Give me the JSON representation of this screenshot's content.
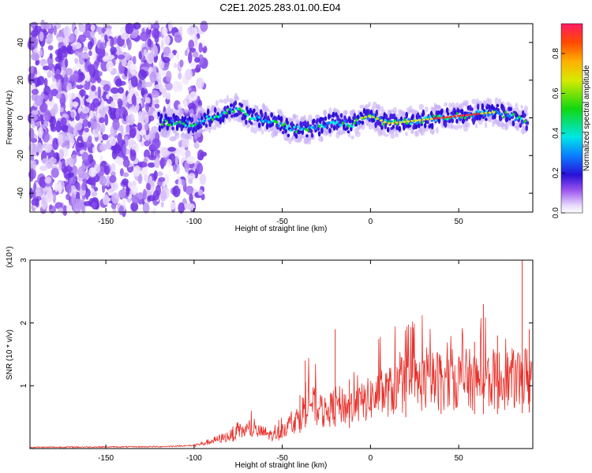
{
  "title": "C2E1.2025.283.01.00.E04",
  "chart_data": [
    {
      "type": "heatmap",
      "title": "C2E1.2025.283.01.00.E04",
      "xlabel": "Height of straight line (km)",
      "ylabel": "Frequency (Hz)",
      "xlim": [
        -193,
        92
      ],
      "ylim": [
        -50,
        50
      ],
      "xticks": [
        -150,
        -100,
        -50,
        0,
        50
      ],
      "yticks": [
        -40,
        -20,
        0,
        20,
        40
      ],
      "colorbar": {
        "label": "Normalized spectral amplitude",
        "range": [
          0,
          0.95
        ],
        "ticks": [
          0.0,
          0.2,
          0.4,
          0.6,
          0.8
        ]
      },
      "noise_region_x": [
        -193,
        -100
      ],
      "ridge": {
        "x": [
          -120,
          -110,
          -100,
          -90,
          -80,
          -75,
          -70,
          -60,
          -50,
          -45,
          -40,
          -30,
          -20,
          -10,
          -5,
          0,
          10,
          20,
          30,
          40,
          50,
          60,
          70,
          80,
          88
        ],
        "freq": [
          -2,
          -3,
          -3,
          0,
          4,
          5,
          1,
          -1,
          -4,
          -6,
          -6,
          -5,
          -2,
          -4,
          0,
          1,
          -3,
          -2,
          -1,
          0,
          1,
          2,
          3,
          1,
          -2
        ]
      }
    },
    {
      "type": "line",
      "xlabel": "Height of straight line (km)",
      "ylabel": "SNR (10 * v/v)",
      "y_multiplier": "(x10⁴)",
      "xlim": [
        -193,
        92
      ],
      "ylim": [
        0,
        3
      ],
      "xticks": [
        -150,
        -100,
        -50,
        0,
        50
      ],
      "yticks": [
        1,
        2,
        3
      ],
      "color": "#e8302a",
      "envelope": {
        "x": [
          -193,
          -120,
          -100,
          -95,
          -90,
          -80,
          -70,
          -60,
          -55,
          -50,
          -40,
          -35,
          -30,
          -25,
          -20,
          -10,
          0,
          10,
          20,
          30,
          40,
          50,
          60,
          70,
          80,
          90
        ],
        "y": [
          0.02,
          0.03,
          0.05,
          0.08,
          0.12,
          0.2,
          0.3,
          0.25,
          0.2,
          0.3,
          0.5,
          0.8,
          0.6,
          0.55,
          0.7,
          0.65,
          0.8,
          0.9,
          1.0,
          1.05,
          1.1,
          1.1,
          1.1,
          1.1,
          1.1,
          1.15
        ]
      },
      "spikes": [
        {
          "x": -78,
          "y": 0.35
        },
        {
          "x": -52,
          "y": 0.45
        },
        {
          "x": -40,
          "y": 0.85
        },
        {
          "x": -37,
          "y": 1.4
        },
        {
          "x": -20,
          "y": 1.9
        },
        {
          "x": -12,
          "y": 1.1
        },
        {
          "x": 20,
          "y": 1.3
        },
        {
          "x": 40,
          "y": 1.4
        },
        {
          "x": 59,
          "y": 1.7
        },
        {
          "x": 64,
          "y": 2.3
        },
        {
          "x": 72,
          "y": 1.8
        },
        {
          "x": 86,
          "y": 3.0
        },
        {
          "x": 90,
          "y": 1.9
        }
      ]
    }
  ]
}
